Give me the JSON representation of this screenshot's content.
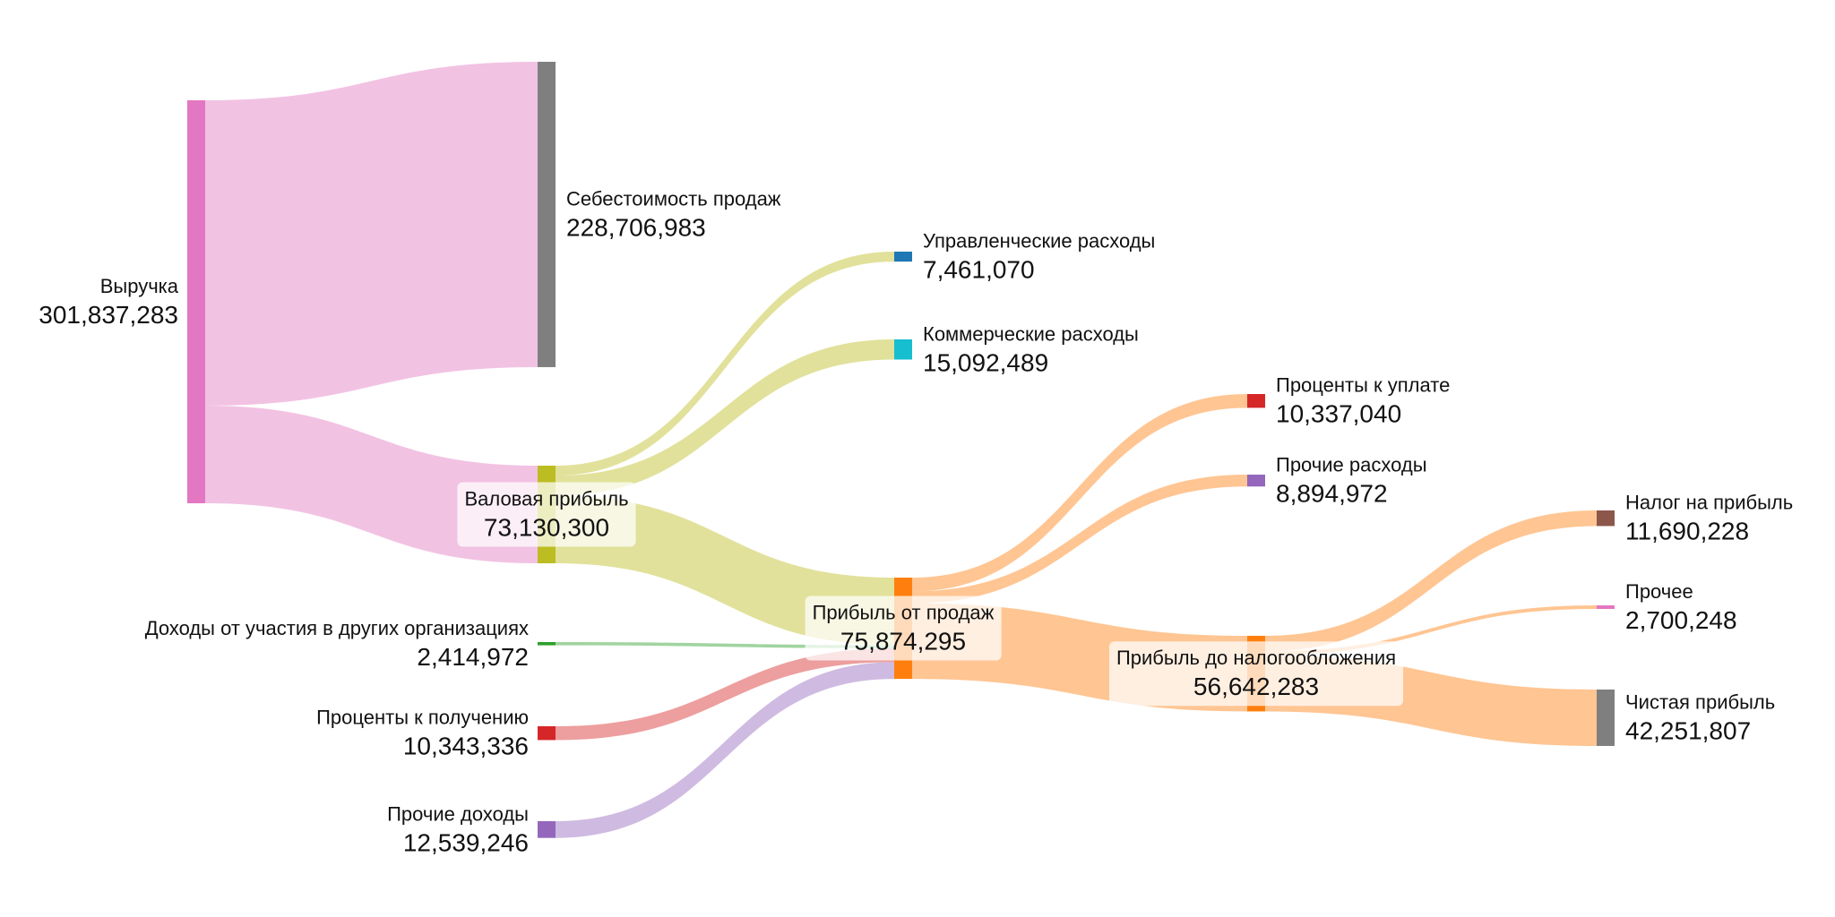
{
  "chart_data": {
    "type": "sankey",
    "title": "",
    "nodes": [
      {
        "id": "revenue",
        "name": "Выручка",
        "value": 301837283,
        "value_label": "301,837,283",
        "color": "#e377c2",
        "column": 0
      },
      {
        "id": "cogs",
        "name": "Себестоимость продаж",
        "value": 228706983,
        "value_label": "228,706,983",
        "color": "#7f7f7f",
        "column": 1
      },
      {
        "id": "gross",
        "name": "Валовая прибыль",
        "value": 73130300,
        "value_label": "73,130,300",
        "color": "#bcbd22",
        "column": 1
      },
      {
        "id": "participation",
        "name": "Доходы от участия в других организациях",
        "value": 2414972,
        "value_label": "2,414,972",
        "color": "#2ca02c",
        "column": 1
      },
      {
        "id": "interest_in",
        "name": "Проценты к получению",
        "value": 10343336,
        "value_label": "10,343,336",
        "color": "#d62728",
        "column": 1
      },
      {
        "id": "other_income",
        "name": "Прочие доходы",
        "value": 12539246,
        "value_label": "12,539,246",
        "color": "#9467bd",
        "column": 1
      },
      {
        "id": "admin",
        "name": "Управленческие расходы",
        "value": 7461070,
        "value_label": "7,461,070",
        "color": "#1f77b4",
        "column": 2
      },
      {
        "id": "selling",
        "name": "Коммерческие расходы",
        "value": 15092489,
        "value_label": "15,092,489",
        "color": "#17becf",
        "column": 2
      },
      {
        "id": "sales_profit",
        "name": "Прибыль от продаж",
        "value": 75874295,
        "value_label": "75,874,295",
        "color": "#ff7f0e",
        "column": 2
      },
      {
        "id": "interest_out",
        "name": "Проценты к уплате",
        "value": 10337040,
        "value_label": "10,337,040",
        "color": "#d62728",
        "column": 3
      },
      {
        "id": "other_exp",
        "name": "Прочие расходы",
        "value": 8894972,
        "value_label": "8,894,972",
        "color": "#9467bd",
        "column": 3
      },
      {
        "id": "pretax",
        "name": "Прибыль до налогообложения",
        "value": 56642283,
        "value_label": "56,642,283",
        "color": "#ff7f0e",
        "column": 3
      },
      {
        "id": "tax",
        "name": "Налог на прибыль",
        "value": 11690228,
        "value_label": "11,690,228",
        "color": "#8c564b",
        "column": 4
      },
      {
        "id": "other",
        "name": "Прочее",
        "value": 2700248,
        "value_label": "2,700,248",
        "color": "#e377c2",
        "column": 4
      },
      {
        "id": "net",
        "name": "Чистая прибыль",
        "value": 42251807,
        "value_label": "42,251,807",
        "color": "#7f7f7f",
        "column": 4
      }
    ],
    "links": [
      {
        "source": "revenue",
        "target": "cogs",
        "value": 228706983
      },
      {
        "source": "revenue",
        "target": "gross",
        "value": 73130300
      },
      {
        "source": "gross",
        "target": "admin",
        "value": 7461070
      },
      {
        "source": "gross",
        "target": "selling",
        "value": 15092489
      },
      {
        "source": "gross",
        "target": "sales_profit",
        "value": 50576741
      },
      {
        "source": "participation",
        "target": "sales_profit",
        "value": 2414972
      },
      {
        "source": "interest_in",
        "target": "sales_profit",
        "value": 10343336
      },
      {
        "source": "other_income",
        "target": "sales_profit",
        "value": 12539246
      },
      {
        "source": "sales_profit",
        "target": "interest_out",
        "value": 10337040
      },
      {
        "source": "sales_profit",
        "target": "other_exp",
        "value": 8894972
      },
      {
        "source": "sales_profit",
        "target": "pretax",
        "value": 56642283
      },
      {
        "source": "pretax",
        "target": "tax",
        "value": 11690228
      },
      {
        "source": "pretax",
        "target": "other",
        "value": 2700248
      },
      {
        "source": "pretax",
        "target": "net",
        "value": 42251807
      }
    ]
  }
}
